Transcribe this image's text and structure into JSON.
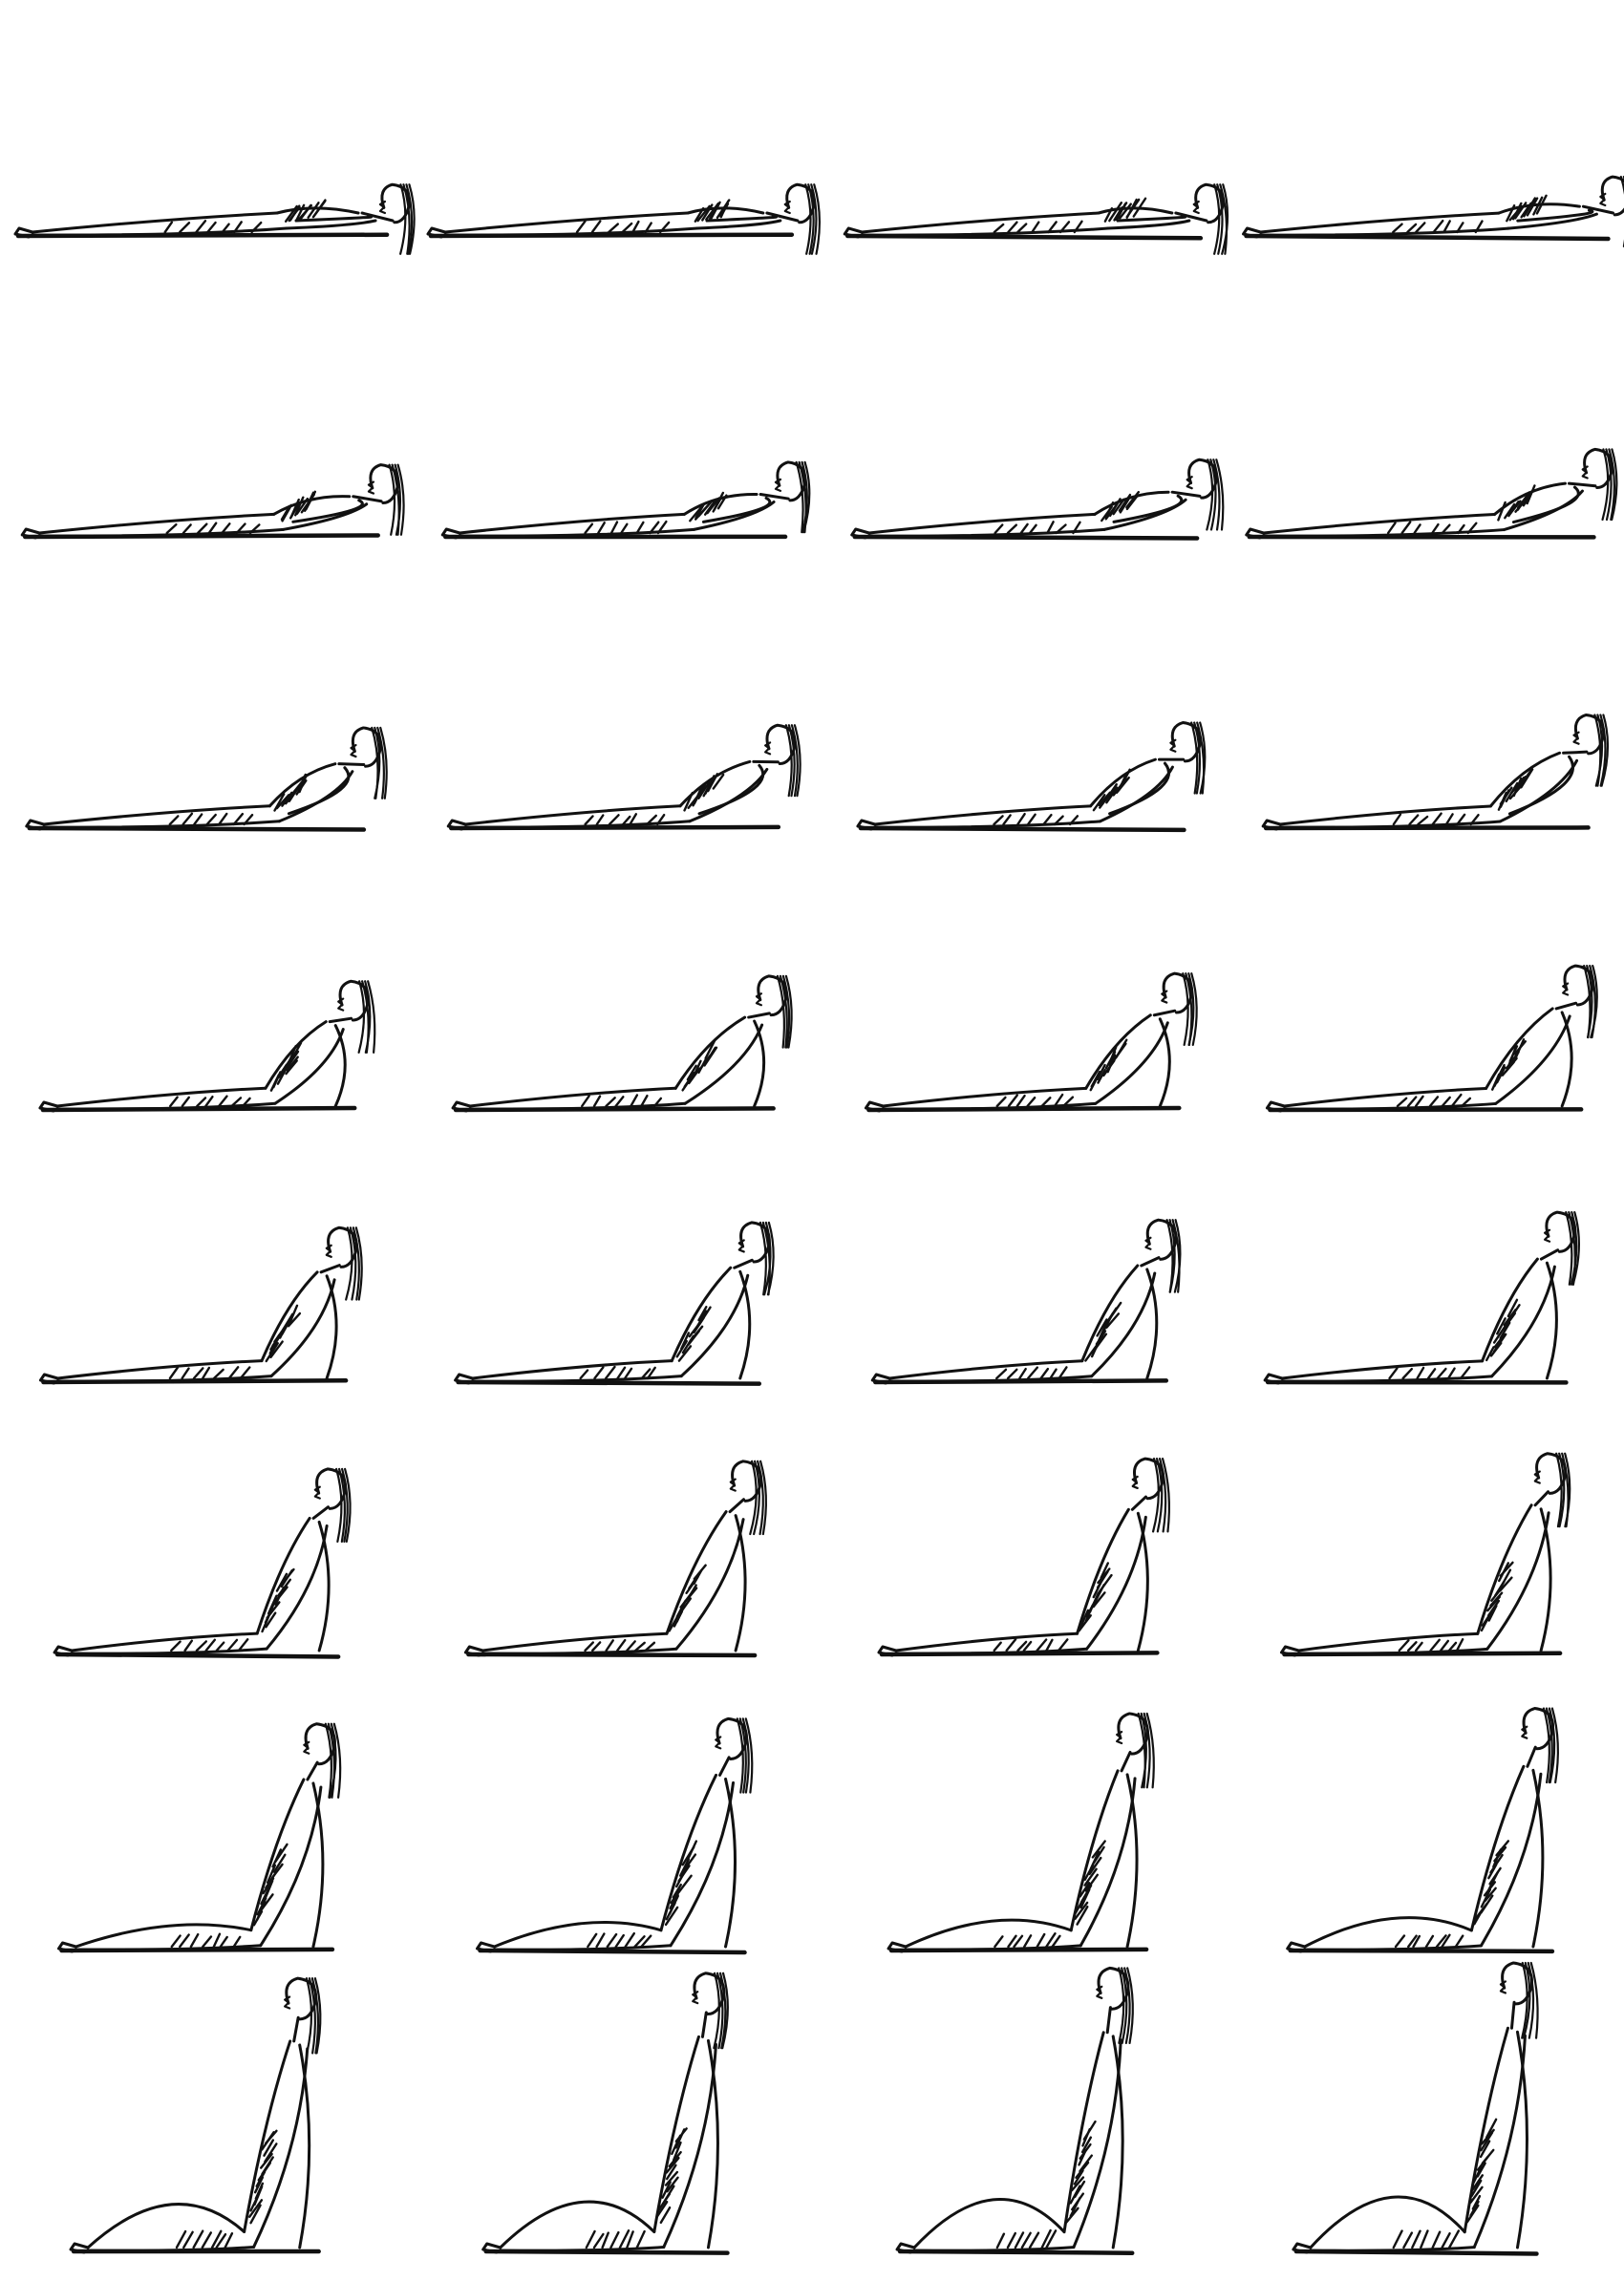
{
  "sheet": {
    "background": "#ffffff",
    "ink": "#111111",
    "layout": {
      "rows": 8,
      "columns": 4
    }
  },
  "figures": [
    {
      "recline": 0.0
    },
    {
      "recline": 0.0
    },
    {
      "recline": 0.0
    },
    {
      "recline": 0.03
    },
    {
      "recline": 0.08
    },
    {
      "recline": 0.09
    },
    {
      "recline": 0.1
    },
    {
      "recline": 0.14
    },
    {
      "recline": 0.19
    },
    {
      "recline": 0.2
    },
    {
      "recline": 0.21
    },
    {
      "recline": 0.24
    },
    {
      "recline": 0.3
    },
    {
      "recline": 0.32
    },
    {
      "recline": 0.33
    },
    {
      "recline": 0.36
    },
    {
      "recline": 0.4
    },
    {
      "recline": 0.42
    },
    {
      "recline": 0.43
    },
    {
      "recline": 0.46
    },
    {
      "recline": 0.52
    },
    {
      "recline": 0.55
    },
    {
      "recline": 0.56
    },
    {
      "recline": 0.58
    },
    {
      "recline": 0.68
    },
    {
      "recline": 0.7
    },
    {
      "recline": 0.72
    },
    {
      "recline": 0.74
    },
    {
      "recline": 0.86
    },
    {
      "recline": 0.88
    },
    {
      "recline": 0.9
    },
    {
      "recline": 0.92
    }
  ]
}
